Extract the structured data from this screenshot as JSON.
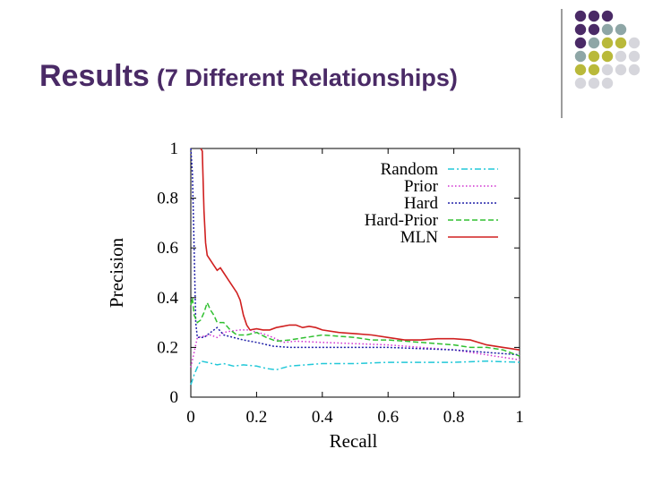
{
  "slide": {
    "title": "Results",
    "subtitle": "(7 Different Relationships)"
  },
  "decoration": {
    "dot_colors": [
      "#4a2a66",
      "#8ea6a6",
      "#b9b93a",
      "#d6d6dc"
    ]
  },
  "chart_data": {
    "type": "line",
    "xlabel": "Recall",
    "ylabel": "Precision",
    "xlim": [
      0,
      1
    ],
    "ylim": [
      0,
      1
    ],
    "xticks": [
      "0",
      "0.2",
      "0.4",
      "0.6",
      "0.8",
      "1"
    ],
    "yticks": [
      "0",
      "0.2",
      "0.4",
      "0.6",
      "0.8",
      "1"
    ],
    "grid": false,
    "legend_position": "top-right",
    "series": [
      {
        "name": "Random",
        "color": "#22c8d8",
        "dash": "dash-dot",
        "points": [
          [
            0.0,
            0.05
          ],
          [
            0.01,
            0.09
          ],
          [
            0.02,
            0.12
          ],
          [
            0.03,
            0.145
          ],
          [
            0.05,
            0.14
          ],
          [
            0.08,
            0.13
          ],
          [
            0.1,
            0.135
          ],
          [
            0.13,
            0.125
          ],
          [
            0.16,
            0.13
          ],
          [
            0.2,
            0.125
          ],
          [
            0.23,
            0.115
          ],
          [
            0.26,
            0.11
          ],
          [
            0.3,
            0.125
          ],
          [
            0.35,
            0.13
          ],
          [
            0.4,
            0.135
          ],
          [
            0.5,
            0.135
          ],
          [
            0.6,
            0.14
          ],
          [
            0.7,
            0.14
          ],
          [
            0.8,
            0.14
          ],
          [
            0.9,
            0.145
          ],
          [
            1.0,
            0.14
          ]
        ]
      },
      {
        "name": "Prior",
        "color": "#d030d0",
        "dash": "dotted",
        "points": [
          [
            0.0,
            0.12
          ],
          [
            0.01,
            0.18
          ],
          [
            0.02,
            0.24
          ],
          [
            0.04,
            0.245
          ],
          [
            0.06,
            0.25
          ],
          [
            0.08,
            0.24
          ],
          [
            0.1,
            0.26
          ],
          [
            0.12,
            0.265
          ],
          [
            0.15,
            0.27
          ],
          [
            0.18,
            0.27
          ],
          [
            0.2,
            0.26
          ],
          [
            0.22,
            0.255
          ],
          [
            0.25,
            0.24
          ],
          [
            0.28,
            0.22
          ],
          [
            0.32,
            0.225
          ],
          [
            0.4,
            0.22
          ],
          [
            0.5,
            0.215
          ],
          [
            0.6,
            0.21
          ],
          [
            0.7,
            0.2
          ],
          [
            0.8,
            0.19
          ],
          [
            0.9,
            0.17
          ],
          [
            1.0,
            0.15
          ]
        ]
      },
      {
        "name": "Hard",
        "color": "#2020a8",
        "dash": "dense-dotted",
        "points": [
          [
            0.0,
            1.0
          ],
          [
            0.005,
            0.9
          ],
          [
            0.01,
            0.6
          ],
          [
            0.015,
            0.3
          ],
          [
            0.02,
            0.24
          ],
          [
            0.04,
            0.24
          ],
          [
            0.06,
            0.26
          ],
          [
            0.08,
            0.28
          ],
          [
            0.1,
            0.25
          ],
          [
            0.13,
            0.24
          ],
          [
            0.16,
            0.23
          ],
          [
            0.2,
            0.22
          ],
          [
            0.25,
            0.205
          ],
          [
            0.3,
            0.2
          ],
          [
            0.35,
            0.2
          ],
          [
            0.4,
            0.2
          ],
          [
            0.5,
            0.2
          ],
          [
            0.6,
            0.2
          ],
          [
            0.7,
            0.195
          ],
          [
            0.8,
            0.19
          ],
          [
            0.9,
            0.18
          ],
          [
            1.0,
            0.17
          ]
        ]
      },
      {
        "name": "Hard-Prior",
        "color": "#30c030",
        "dash": "dashed",
        "points": [
          [
            0.0,
            0.37
          ],
          [
            0.005,
            0.4
          ],
          [
            0.01,
            0.33
          ],
          [
            0.02,
            0.3
          ],
          [
            0.03,
            0.31
          ],
          [
            0.04,
            0.34
          ],
          [
            0.05,
            0.38
          ],
          [
            0.06,
            0.35
          ],
          [
            0.07,
            0.33
          ],
          [
            0.08,
            0.3
          ],
          [
            0.1,
            0.3
          ],
          [
            0.12,
            0.27
          ],
          [
            0.14,
            0.25
          ],
          [
            0.17,
            0.25
          ],
          [
            0.2,
            0.26
          ],
          [
            0.23,
            0.24
          ],
          [
            0.26,
            0.225
          ],
          [
            0.3,
            0.23
          ],
          [
            0.35,
            0.24
          ],
          [
            0.4,
            0.25
          ],
          [
            0.45,
            0.245
          ],
          [
            0.5,
            0.24
          ],
          [
            0.55,
            0.23
          ],
          [
            0.6,
            0.23
          ],
          [
            0.65,
            0.225
          ],
          [
            0.7,
            0.22
          ],
          [
            0.75,
            0.215
          ],
          [
            0.8,
            0.21
          ],
          [
            0.85,
            0.2
          ],
          [
            0.9,
            0.2
          ],
          [
            0.95,
            0.19
          ],
          [
            1.0,
            0.165
          ]
        ]
      },
      {
        "name": "MLN",
        "color": "#d02020",
        "dash": "solid",
        "points": [
          [
            0.03,
            1.0
          ],
          [
            0.035,
            0.99
          ],
          [
            0.04,
            0.75
          ],
          [
            0.045,
            0.62
          ],
          [
            0.05,
            0.57
          ],
          [
            0.06,
            0.55
          ],
          [
            0.07,
            0.53
          ],
          [
            0.08,
            0.51
          ],
          [
            0.09,
            0.52
          ],
          [
            0.1,
            0.5
          ],
          [
            0.12,
            0.46
          ],
          [
            0.14,
            0.42
          ],
          [
            0.15,
            0.39
          ],
          [
            0.16,
            0.33
          ],
          [
            0.17,
            0.29
          ],
          [
            0.18,
            0.27
          ],
          [
            0.2,
            0.275
          ],
          [
            0.22,
            0.27
          ],
          [
            0.24,
            0.27
          ],
          [
            0.26,
            0.28
          ],
          [
            0.28,
            0.285
          ],
          [
            0.3,
            0.29
          ],
          [
            0.32,
            0.29
          ],
          [
            0.34,
            0.28
          ],
          [
            0.36,
            0.285
          ],
          [
            0.38,
            0.28
          ],
          [
            0.4,
            0.27
          ],
          [
            0.45,
            0.26
          ],
          [
            0.5,
            0.255
          ],
          [
            0.55,
            0.25
          ],
          [
            0.6,
            0.24
          ],
          [
            0.65,
            0.23
          ],
          [
            0.7,
            0.23
          ],
          [
            0.75,
            0.235
          ],
          [
            0.8,
            0.235
          ],
          [
            0.85,
            0.23
          ],
          [
            0.9,
            0.21
          ],
          [
            0.95,
            0.2
          ],
          [
            1.0,
            0.19
          ]
        ]
      }
    ]
  }
}
